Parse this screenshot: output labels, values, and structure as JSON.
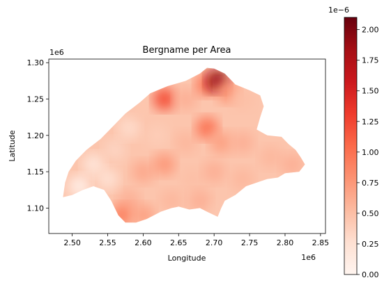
{
  "chart_data": {
    "type": "choropleth",
    "title": "Bergname per Area",
    "xlabel": "Longitude",
    "ylabel": "Latitude",
    "x_offset_label": "1e6",
    "y_offset_label": "1e6",
    "colorbar_offset_label": "1e−6",
    "x_ticks": [
      "2.50",
      "2.55",
      "2.60",
      "2.65",
      "2.70",
      "2.75",
      "2.80",
      "2.85"
    ],
    "x_tick_values": [
      2.5,
      2.55,
      2.6,
      2.65,
      2.7,
      2.75,
      2.8,
      2.85
    ],
    "y_ticks": [
      "1.10",
      "1.15",
      "1.20",
      "1.25",
      "1.30"
    ],
    "y_tick_values": [
      1.1,
      1.15,
      1.2,
      1.25,
      1.3
    ],
    "xlim": [
      2.467,
      2.857
    ],
    "ylim": [
      1.065,
      1.305
    ],
    "colorbar_ticks": [
      "0.00",
      "0.25",
      "0.50",
      "0.75",
      "1.00",
      "1.25",
      "1.50",
      "1.75",
      "2.00"
    ],
    "colorbar_tick_values": [
      0.0,
      0.25,
      0.5,
      0.75,
      1.0,
      1.25,
      1.5,
      1.75,
      2.0
    ],
    "colorbar_range": [
      0.0,
      2.1
    ],
    "colormap": "Reds",
    "colormap_stops": [
      "#fff5f0",
      "#fee0d2",
      "#fcbba1",
      "#fc9272",
      "#fb6a4a",
      "#ef3b2c",
      "#cb181d",
      "#a50f15",
      "#67000d"
    ],
    "region_outline": [
      [
        2.487,
        1.115
      ],
      [
        2.49,
        1.135
      ],
      [
        2.495,
        1.15
      ],
      [
        2.505,
        1.165
      ],
      [
        2.52,
        1.18
      ],
      [
        2.54,
        1.195
      ],
      [
        2.56,
        1.215
      ],
      [
        2.575,
        1.23
      ],
      [
        2.595,
        1.245
      ],
      [
        2.61,
        1.258
      ],
      [
        2.635,
        1.268
      ],
      [
        2.66,
        1.275
      ],
      [
        2.68,
        1.285
      ],
      [
        2.69,
        1.293
      ],
      [
        2.7,
        1.292
      ],
      [
        2.715,
        1.285
      ],
      [
        2.73,
        1.27
      ],
      [
        2.75,
        1.262
      ],
      [
        2.765,
        1.255
      ],
      [
        2.77,
        1.24
      ],
      [
        2.765,
        1.225
      ],
      [
        2.76,
        1.208
      ],
      [
        2.775,
        1.2
      ],
      [
        2.795,
        1.198
      ],
      [
        2.805,
        1.188
      ],
      [
        2.815,
        1.18
      ],
      [
        2.822,
        1.17
      ],
      [
        2.828,
        1.16
      ],
      [
        2.82,
        1.15
      ],
      [
        2.8,
        1.148
      ],
      [
        2.79,
        1.142
      ],
      [
        2.775,
        1.14
      ],
      [
        2.76,
        1.135
      ],
      [
        2.745,
        1.13
      ],
      [
        2.73,
        1.118
      ],
      [
        2.715,
        1.11
      ],
      [
        2.71,
        1.1
      ],
      [
        2.705,
        1.088
      ],
      [
        2.69,
        1.095
      ],
      [
        2.68,
        1.1
      ],
      [
        2.665,
        1.098
      ],
      [
        2.65,
        1.102
      ],
      [
        2.64,
        1.1
      ],
      [
        2.625,
        1.095
      ],
      [
        2.605,
        1.085
      ],
      [
        2.59,
        1.08
      ],
      [
        2.575,
        1.08
      ],
      [
        2.565,
        1.09
      ],
      [
        2.555,
        1.11
      ],
      [
        2.545,
        1.125
      ],
      [
        2.53,
        1.13
      ],
      [
        2.515,
        1.125
      ],
      [
        2.5,
        1.118
      ]
    ],
    "district_values": [
      {
        "x": 2.53,
        "y": 1.16,
        "v": 0.2
      },
      {
        "x": 2.56,
        "y": 1.18,
        "v": 0.35
      },
      {
        "x": 2.58,
        "y": 1.21,
        "v": 0.3
      },
      {
        "x": 2.6,
        "y": 1.24,
        "v": 0.45
      },
      {
        "x": 2.63,
        "y": 1.25,
        "v": 1.2
      },
      {
        "x": 2.66,
        "y": 1.25,
        "v": 0.6
      },
      {
        "x": 2.69,
        "y": 1.27,
        "v": 1.0
      },
      {
        "x": 2.705,
        "y": 1.275,
        "v": 1.9
      },
      {
        "x": 2.72,
        "y": 1.26,
        "v": 0.8
      },
      {
        "x": 2.74,
        "y": 1.25,
        "v": 0.5
      },
      {
        "x": 2.62,
        "y": 1.2,
        "v": 0.4
      },
      {
        "x": 2.66,
        "y": 1.19,
        "v": 0.55
      },
      {
        "x": 2.69,
        "y": 1.21,
        "v": 1.0
      },
      {
        "x": 2.71,
        "y": 1.19,
        "v": 0.7
      },
      {
        "x": 2.74,
        "y": 1.19,
        "v": 0.6
      },
      {
        "x": 2.78,
        "y": 1.17,
        "v": 0.55
      },
      {
        "x": 2.81,
        "y": 1.16,
        "v": 0.6
      },
      {
        "x": 2.6,
        "y": 1.15,
        "v": 0.65
      },
      {
        "x": 2.63,
        "y": 1.16,
        "v": 0.75
      },
      {
        "x": 2.67,
        "y": 1.14,
        "v": 0.5
      },
      {
        "x": 2.7,
        "y": 1.15,
        "v": 0.6
      },
      {
        "x": 2.74,
        "y": 1.14,
        "v": 0.55
      },
      {
        "x": 2.58,
        "y": 1.11,
        "v": 0.6
      },
      {
        "x": 2.57,
        "y": 1.09,
        "v": 0.9
      },
      {
        "x": 2.6,
        "y": 1.09,
        "v": 0.7
      },
      {
        "x": 2.64,
        "y": 1.11,
        "v": 0.55
      },
      {
        "x": 2.68,
        "y": 1.11,
        "v": 0.6
      },
      {
        "x": 2.71,
        "y": 1.09,
        "v": 0.45
      },
      {
        "x": 2.51,
        "y": 1.13,
        "v": 0.1
      },
      {
        "x": 2.55,
        "y": 1.14,
        "v": 0.25
      }
    ]
  }
}
